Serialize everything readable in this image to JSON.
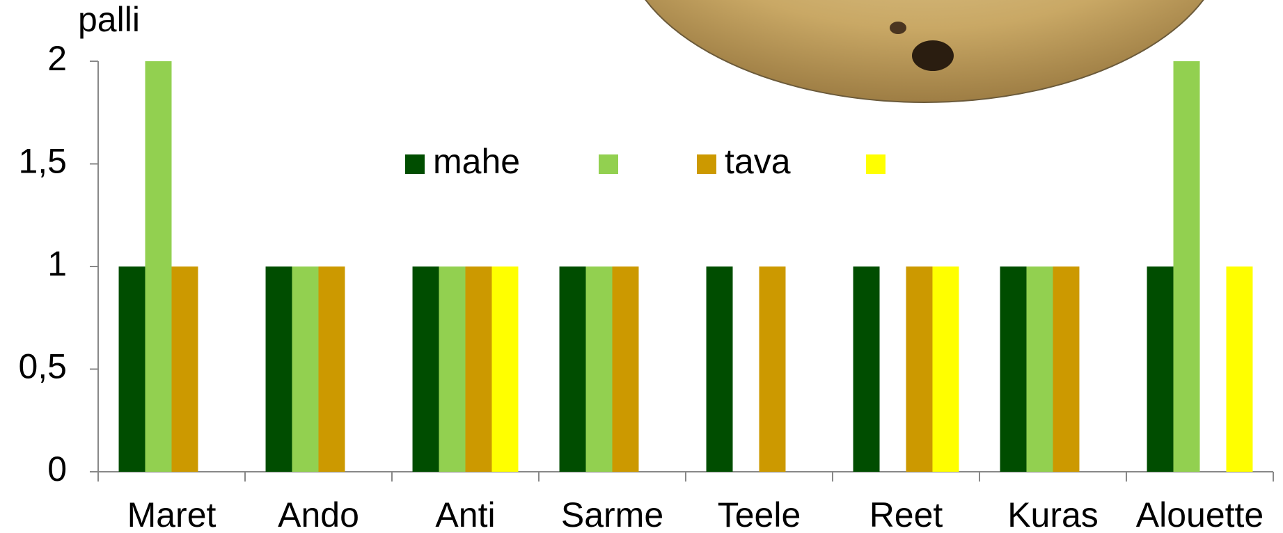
{
  "chart_data": {
    "type": "bar",
    "y_label": "palli",
    "categories": [
      "Maret",
      "Ando",
      "Anti",
      "Sarme",
      "Teele",
      "Reet",
      "Kuras",
      "Alouette"
    ],
    "series": [
      {
        "name": "mahe",
        "color": "#004d00",
        "values": [
          1,
          1,
          1,
          1,
          1,
          1,
          1,
          1
        ]
      },
      {
        "name": null,
        "color": "#92d050",
        "values": [
          2,
          1,
          1,
          1,
          0,
          0,
          1,
          2
        ]
      },
      {
        "name": "tava",
        "color": "#cc9900",
        "values": [
          1,
          1,
          1,
          1,
          1,
          1,
          1,
          0
        ]
      },
      {
        "name": null,
        "color": "#ffff00",
        "values": [
          0,
          0,
          1,
          0,
          0,
          1,
          0,
          1
        ]
      }
    ],
    "ylim": [
      0,
      2
    ],
    "yticks": [
      0,
      {
        "value": 0.5,
        "label": "0,5"
      },
      1,
      {
        "value": 1.5,
        "label": "1,5"
      },
      2
    ],
    "grid": false,
    "legend": "top"
  }
}
